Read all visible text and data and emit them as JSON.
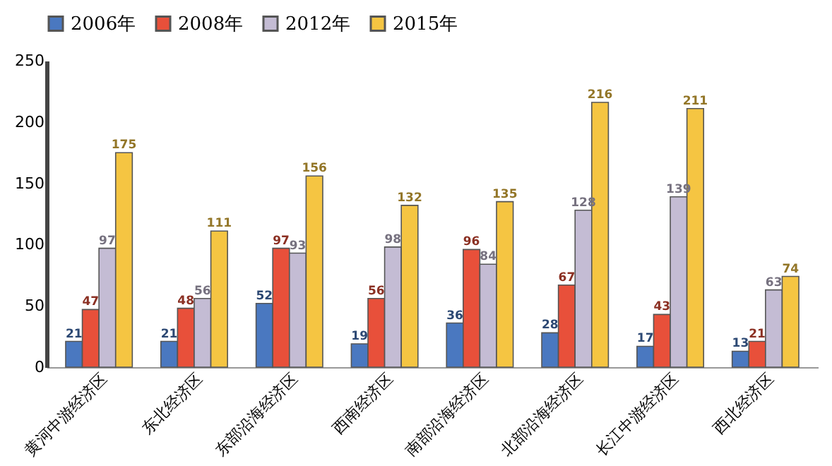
{
  "chart_data": {
    "type": "bar",
    "categories": [
      "黄河中游经济区",
      "东北经济区",
      "东部沿海经济区",
      "西南经济区",
      "南部沿海经济区",
      "北部沿海经济区",
      "长江中游经济区",
      "西北经济区"
    ],
    "series": [
      {
        "name": "2006年",
        "color": "#4a78c0",
        "values": [
          21,
          21,
          52,
          19,
          36,
          28,
          17,
          13
        ]
      },
      {
        "name": "2008年",
        "color": "#e8503a",
        "values": [
          47,
          48,
          97,
          56,
          96,
          67,
          43,
          21
        ]
      },
      {
        "name": "2012年",
        "color": "#c4bcd4",
        "values": [
          97,
          56,
          93,
          98,
          84,
          128,
          139,
          63
        ]
      },
      {
        "name": "2015年",
        "color": "#f5c542",
        "values": [
          175,
          111,
          156,
          132,
          135,
          216,
          211,
          74
        ]
      }
    ],
    "ylim": [
      0,
      250
    ],
    "yticks": [
      0,
      50,
      100,
      150,
      200,
      250
    ],
    "grid": false,
    "legend": "top",
    "data_labels": true
  }
}
